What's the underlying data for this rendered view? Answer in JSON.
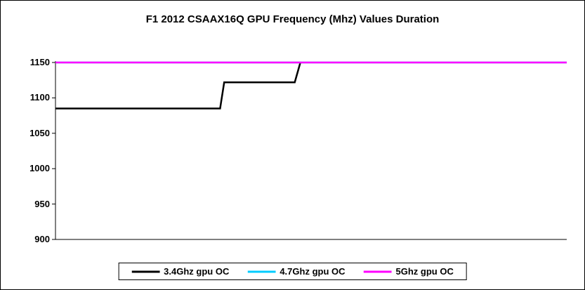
{
  "chart_data": {
    "type": "line",
    "title": "F1 2012 CSAAX16Q GPU Frequency (Mhz) Values Duration",
    "xlabel": "",
    "ylabel": "",
    "ylim": [
      900,
      1150
    ],
    "yticks": [
      900,
      950,
      1000,
      1050,
      1100,
      1150
    ],
    "grid": false,
    "legend_position": "bottom",
    "x_axis_note": "x is relative duration fraction 0-1, no x tick labels shown",
    "series": [
      {
        "name": "3.4Ghz gpu OC",
        "color": "#000000",
        "points": [
          [
            0,
            1085
          ],
          [
            0.322,
            1085
          ],
          [
            0.33,
            1122
          ],
          [
            0.468,
            1122
          ],
          [
            0.479,
            1150
          ]
        ]
      },
      {
        "name": "4.7Ghz gpu OC",
        "color": "#00CCFF",
        "points": [
          [
            0,
            1150
          ],
          [
            1,
            1150
          ]
        ]
      },
      {
        "name": "5Ghz gpu OC",
        "color": "#FF00FF",
        "points": [
          [
            0,
            1150
          ],
          [
            1,
            1150
          ]
        ]
      }
    ]
  }
}
